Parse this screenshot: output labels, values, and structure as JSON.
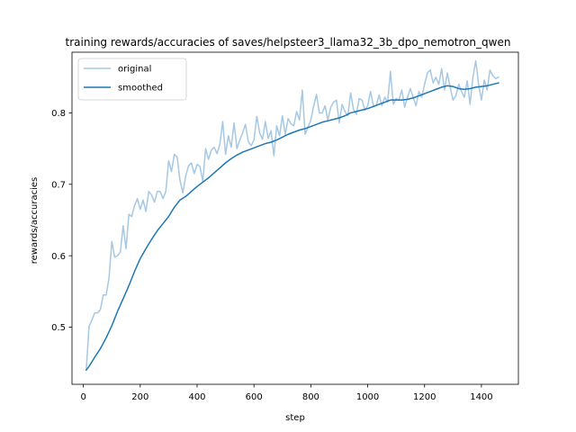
{
  "chart_data": {
    "type": "line",
    "title": "training rewards/accuracies of saves/helpsteer3_llama32_3b_dpo_nemotron_qwen",
    "xlabel": "step",
    "ylabel": "rewards/accuracies",
    "xlim": [
      -40,
      1530
    ],
    "ylim": [
      0.42,
      0.885
    ],
    "xticks": [
      0,
      200,
      400,
      600,
      800,
      1000,
      1200,
      1400
    ],
    "yticks": [
      0.5,
      0.6,
      0.7,
      0.8
    ],
    "grid": false,
    "legend": "upper left",
    "colors": {
      "original": "#a6c8e3",
      "smoothed": "#1f77b4",
      "axes": "#000000"
    },
    "series": [
      {
        "name": "original",
        "x": [
          10,
          20,
          30,
          40,
          50,
          60,
          70,
          80,
          90,
          100,
          110,
          120,
          130,
          140,
          150,
          160,
          170,
          180,
          190,
          200,
          210,
          220,
          230,
          240,
          250,
          260,
          270,
          280,
          290,
          300,
          310,
          320,
          330,
          340,
          350,
          360,
          370,
          380,
          390,
          400,
          410,
          420,
          430,
          440,
          450,
          460,
          470,
          480,
          490,
          500,
          510,
          520,
          530,
          540,
          550,
          560,
          570,
          580,
          590,
          600,
          610,
          620,
          630,
          640,
          650,
          660,
          670,
          680,
          690,
          700,
          710,
          720,
          730,
          740,
          750,
          760,
          770,
          780,
          790,
          800,
          810,
          820,
          830,
          840,
          850,
          860,
          870,
          880,
          890,
          900,
          910,
          920,
          930,
          940,
          950,
          960,
          970,
          980,
          990,
          1000,
          1010,
          1020,
          1030,
          1040,
          1050,
          1060,
          1070,
          1080,
          1090,
          1100,
          1110,
          1120,
          1130,
          1140,
          1150,
          1160,
          1170,
          1180,
          1190,
          1200,
          1210,
          1220,
          1230,
          1240,
          1250,
          1260,
          1270,
          1280,
          1290,
          1300,
          1310,
          1320,
          1330,
          1340,
          1350,
          1360,
          1370,
          1380,
          1390,
          1400,
          1410,
          1420,
          1430,
          1440,
          1450,
          1460
        ],
        "values": [
          0.44,
          0.501,
          0.51,
          0.52,
          0.52,
          0.525,
          0.545,
          0.545,
          0.568,
          0.62,
          0.598,
          0.6,
          0.605,
          0.642,
          0.61,
          0.658,
          0.655,
          0.67,
          0.68,
          0.665,
          0.678,
          0.662,
          0.69,
          0.685,
          0.675,
          0.69,
          0.69,
          0.68,
          0.69,
          0.733,
          0.718,
          0.742,
          0.738,
          0.705,
          0.688,
          0.712,
          0.726,
          0.73,
          0.715,
          0.728,
          0.725,
          0.704,
          0.75,
          0.735,
          0.748,
          0.752,
          0.743,
          0.756,
          0.788,
          0.742,
          0.768,
          0.752,
          0.786,
          0.75,
          0.762,
          0.772,
          0.784,
          0.76,
          0.754,
          0.762,
          0.795,
          0.772,
          0.763,
          0.788,
          0.764,
          0.775,
          0.74,
          0.782,
          0.768,
          0.796,
          0.77,
          0.792,
          0.785,
          0.782,
          0.802,
          0.79,
          0.832,
          0.77,
          0.78,
          0.79,
          0.81,
          0.826,
          0.8,
          0.8,
          0.81,
          0.79,
          0.808,
          0.815,
          0.818,
          0.786,
          0.812,
          0.802,
          0.796,
          0.828,
          0.805,
          0.798,
          0.82,
          0.818,
          0.804,
          0.81,
          0.83,
          0.81,
          0.81,
          0.825,
          0.81,
          0.822,
          0.815,
          0.858,
          0.812,
          0.82,
          0.818,
          0.832,
          0.808,
          0.822,
          0.834,
          0.822,
          0.81,
          0.83,
          0.822,
          0.84,
          0.856,
          0.86,
          0.842,
          0.85,
          0.84,
          0.862,
          0.832,
          0.856,
          0.836,
          0.818,
          0.824,
          0.84,
          0.83,
          0.822,
          0.845,
          0.812,
          0.85,
          0.873,
          0.84,
          0.818,
          0.846,
          0.832,
          0.86,
          0.852,
          0.848,
          0.85
        ]
      },
      {
        "name": "smoothed",
        "x": [
          10,
          20,
          40,
          60,
          80,
          100,
          120,
          140,
          160,
          180,
          200,
          220,
          240,
          260,
          280,
          300,
          320,
          340,
          360,
          380,
          400,
          420,
          440,
          460,
          480,
          500,
          520,
          540,
          560,
          580,
          600,
          620,
          640,
          660,
          680,
          700,
          720,
          740,
          760,
          780,
          800,
          820,
          840,
          860,
          880,
          900,
          920,
          940,
          960,
          980,
          1000,
          1020,
          1040,
          1060,
          1080,
          1100,
          1120,
          1140,
          1160,
          1180,
          1200,
          1220,
          1240,
          1260,
          1280,
          1300,
          1320,
          1340,
          1360,
          1380,
          1400,
          1420,
          1440,
          1460
        ],
        "values": [
          0.44,
          0.445,
          0.458,
          0.47,
          0.485,
          0.502,
          0.522,
          0.54,
          0.558,
          0.578,
          0.596,
          0.61,
          0.623,
          0.635,
          0.645,
          0.655,
          0.668,
          0.678,
          0.683,
          0.69,
          0.697,
          0.703,
          0.709,
          0.716,
          0.723,
          0.73,
          0.736,
          0.741,
          0.745,
          0.748,
          0.751,
          0.754,
          0.757,
          0.759,
          0.762,
          0.766,
          0.77,
          0.773,
          0.776,
          0.778,
          0.781,
          0.784,
          0.787,
          0.789,
          0.791,
          0.793,
          0.796,
          0.8,
          0.802,
          0.804,
          0.806,
          0.809,
          0.812,
          0.815,
          0.818,
          0.818,
          0.818,
          0.819,
          0.821,
          0.824,
          0.827,
          0.83,
          0.833,
          0.836,
          0.838,
          0.837,
          0.834,
          0.833,
          0.834,
          0.836,
          0.837,
          0.838,
          0.84,
          0.842
        ]
      }
    ]
  }
}
